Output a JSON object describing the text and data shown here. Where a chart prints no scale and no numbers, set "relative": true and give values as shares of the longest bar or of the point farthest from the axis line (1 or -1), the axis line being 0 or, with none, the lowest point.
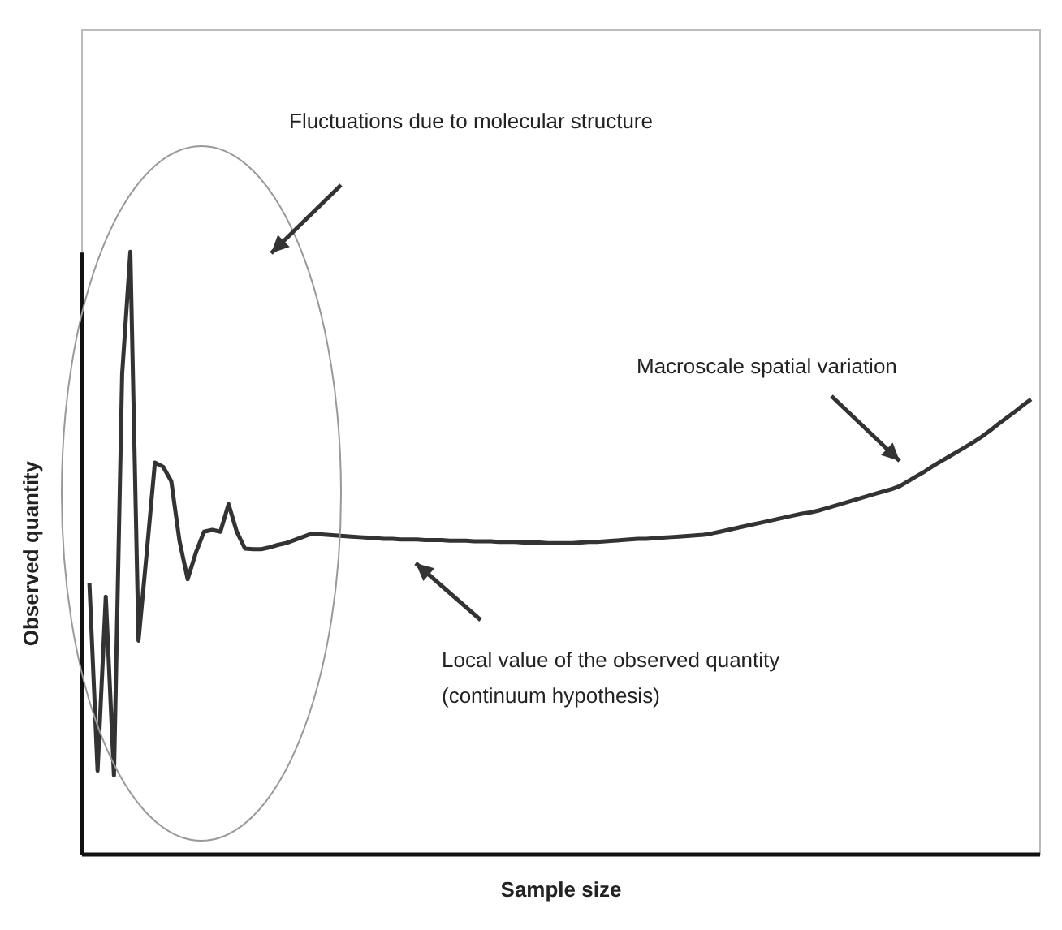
{
  "chart_data": {
    "type": "line",
    "relative": true,
    "xlabel": "Sample size",
    "ylabel": "Observed quantity",
    "annotations": [
      "Fluctuations due to molecular structure",
      "Macroscale spatial variation",
      "Local value of the observed quantity (continuum hypothesis)"
    ],
    "grid": false,
    "marker": "none",
    "line_style": "solid",
    "categories": [
      null,
      null,
      null,
      null,
      null,
      null,
      null,
      null,
      null,
      null,
      null,
      null,
      null,
      null,
      null,
      null,
      null,
      null,
      null,
      null,
      null,
      null,
      null,
      null,
      null,
      null,
      null,
      null,
      null,
      null,
      null,
      null,
      null,
      null,
      null,
      null,
      null,
      null,
      null,
      null,
      null,
      null,
      null,
      null,
      null,
      null,
      null,
      null,
      null,
      null,
      null,
      null,
      null,
      null,
      null,
      null,
      null,
      null,
      null,
      null,
      null,
      null,
      null,
      null,
      null,
      null,
      null,
      null,
      null,
      null,
      null,
      null,
      null,
      null,
      null,
      null,
      null,
      null,
      null,
      null,
      null,
      null,
      null,
      null,
      null,
      null,
      null,
      null,
      null,
      null,
      null,
      null,
      null,
      null,
      null,
      null,
      null,
      null,
      null,
      null,
      null,
      null,
      null,
      null,
      null,
      null,
      null,
      null,
      null,
      null,
      null,
      null,
      null,
      null,
      null,
      null
    ],
    "series": [
      {
        "color": "#333333",
        "values": [
          0.45,
          0.138,
          0.427,
          0.13,
          0.797,
          1,
          0.354,
          0.5,
          0.65,
          0.643,
          0.619,
          0.52,
          0.456,
          0.5,
          0.535,
          0.538,
          0.535,
          0.581,
          0.535,
          0.507,
          0.506,
          0.506,
          0.509,
          0.513,
          0.516,
          0.521,
          0.526,
          0.531,
          0.531,
          0.53,
          0.529,
          0.528,
          0.527,
          0.526,
          0.525,
          0.524,
          0.523,
          0.523,
          0.522,
          0.522,
          0.522,
          0.521,
          0.521,
          0.521,
          0.52,
          0.52,
          0.52,
          0.519,
          0.519,
          0.519,
          0.518,
          0.518,
          0.518,
          0.517,
          0.517,
          0.517,
          0.516,
          0.516,
          0.516,
          0.516,
          0.517,
          0.518,
          0.518,
          0.519,
          0.52,
          0.521,
          0.522,
          0.523,
          0.523,
          0.524,
          0.525,
          0.526,
          0.527,
          0.528,
          0.529,
          0.53,
          0.532,
          0.535,
          0.538,
          0.541,
          0.544,
          0.547,
          0.55,
          0.553,
          0.556,
          0.559,
          0.562,
          0.565,
          0.567,
          0.57,
          0.574,
          0.578,
          0.582,
          0.586,
          0.59,
          0.594,
          0.598,
          0.602,
          0.606,
          0.611,
          0.619,
          0.627,
          0.635,
          0.644,
          0.652,
          0.66,
          0.668,
          0.676,
          0.684,
          0.693,
          0.703,
          0.714,
          0.724,
          0.734,
          0.745,
          0.755
        ]
      }
    ]
  }
}
